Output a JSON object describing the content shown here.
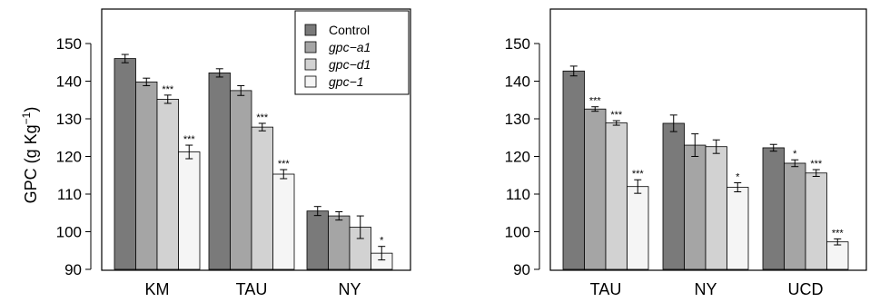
{
  "chart_data": [
    {
      "type": "bar",
      "ylabel_main": "GPC (g Kg",
      "ylabel_sup": "−1",
      "ylabel_end": ")",
      "ylim": [
        90,
        150
      ],
      "yticks": [
        "90",
        "100",
        "110",
        "120",
        "130",
        "140",
        "150"
      ],
      "categories": [
        "KM",
        "TAU",
        "NY"
      ],
      "series": [
        {
          "name": "Control",
          "color": "#7a7a7a",
          "values": [
            146,
            142.2,
            105.5
          ],
          "errors": [
            1.1,
            1.1,
            1.2
          ],
          "sig": [
            "",
            "",
            ""
          ]
        },
        {
          "name": "gpc−a1",
          "color": "#a5a5a5",
          "values": [
            139.8,
            137.5,
            104.2
          ],
          "errors": [
            1.0,
            1.3,
            1.1
          ],
          "sig": [
            "",
            "",
            ""
          ]
        },
        {
          "name": "gpc−d1",
          "color": "#d2d2d2",
          "values": [
            135.2,
            127.8,
            101.2
          ],
          "errors": [
            1.1,
            1.0,
            3.0
          ],
          "sig": [
            "***",
            "***",
            ""
          ]
        },
        {
          "name": "gpc−1",
          "color": "#f5f5f5",
          "values": [
            121.2,
            115.3,
            94.3
          ],
          "errors": [
            1.8,
            1.2,
            1.8
          ],
          "sig": [
            "***",
            "***",
            "*"
          ]
        }
      ],
      "legend": "top-right",
      "legend_entries": [
        {
          "label": "Control",
          "italic": false,
          "color": "#7a7a7a"
        },
        {
          "label": "gpc−a1",
          "italic": true,
          "color": "#a5a5a5"
        },
        {
          "label": "gpc−d1",
          "italic": true,
          "color": "#d2d2d2"
        },
        {
          "label": "gpc−1",
          "italic": true,
          "color": "#f5f5f5"
        }
      ]
    },
    {
      "type": "bar",
      "ylim": [
        90,
        150
      ],
      "yticks": [
        "90",
        "100",
        "110",
        "120",
        "130",
        "140",
        "150"
      ],
      "categories": [
        "TAU",
        "NY",
        "UCD"
      ],
      "series": [
        {
          "name": "Control",
          "color": "#7a7a7a",
          "values": [
            142.7,
            128.8,
            122.3
          ],
          "errors": [
            1.3,
            2.2,
            0.9
          ],
          "sig": [
            "",
            "",
            ""
          ]
        },
        {
          "name": "gpc−a1",
          "color": "#a5a5a5",
          "values": [
            132.6,
            123.0,
            118.2
          ],
          "errors": [
            0.6,
            3.0,
            0.9
          ],
          "sig": [
            "***",
            "",
            "*"
          ]
        },
        {
          "name": "gpc−d1",
          "color": "#d2d2d2",
          "values": [
            128.9,
            122.6,
            115.6
          ],
          "errors": [
            0.6,
            1.8,
            0.9
          ],
          "sig": [
            "***",
            "",
            "***"
          ]
        },
        {
          "name": "gpc−1",
          "color": "#f5f5f5",
          "values": [
            112.0,
            111.8,
            97.3
          ],
          "errors": [
            1.8,
            1.2,
            0.8
          ],
          "sig": [
            "***",
            "*",
            "***"
          ]
        }
      ]
    }
  ]
}
